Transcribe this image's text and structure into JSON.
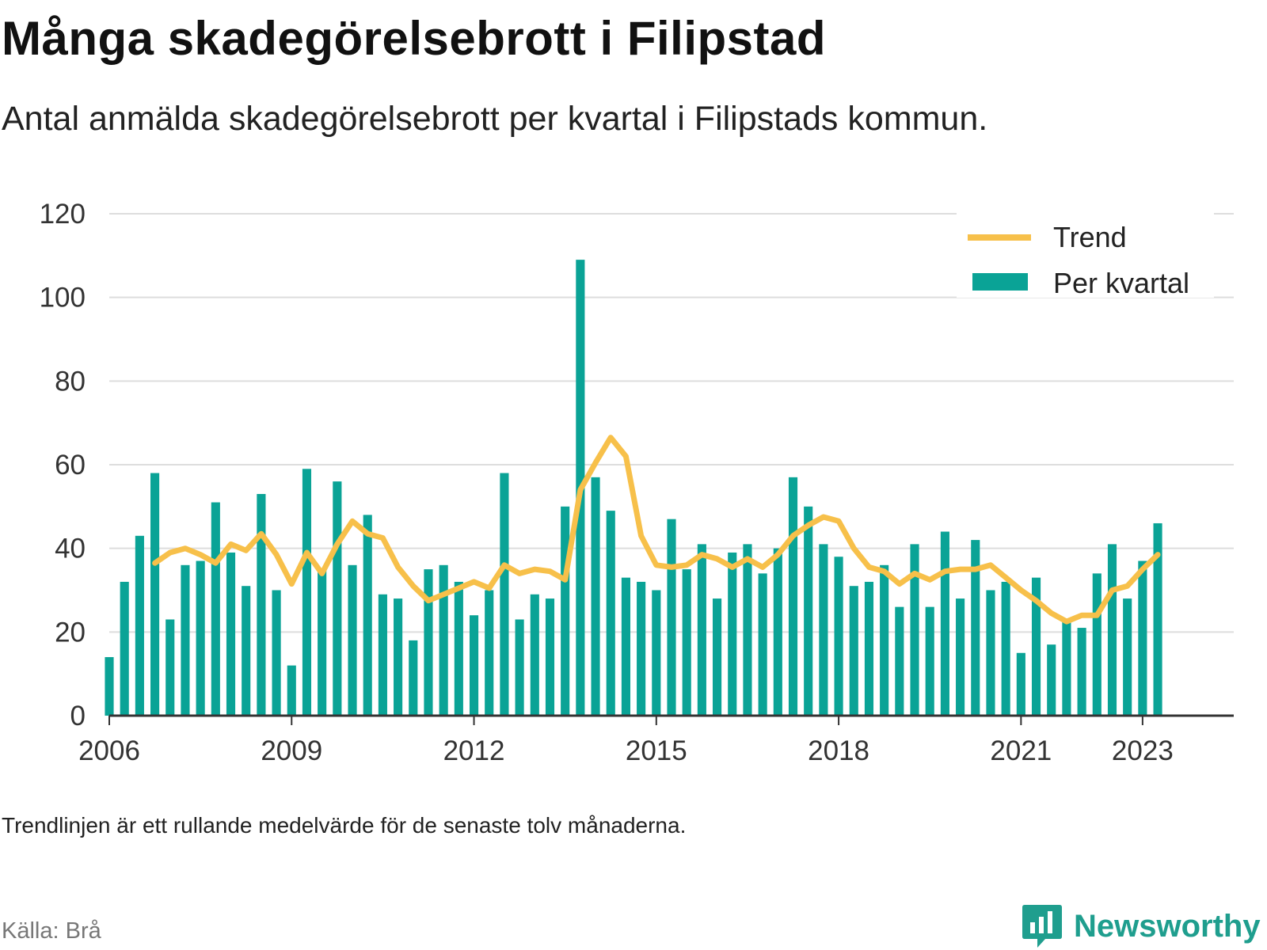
{
  "title": "Många skadegörelsebrott i Filipstad",
  "subtitle": "Antal anmälda skadegörelsebrott per kvartal i Filipstads kommun.",
  "note": "Trendlinjen är ett rullande medelvärde för de senaste tolv månaderna.",
  "source": "Källa: Brå",
  "brand": {
    "name": "Newsworthy",
    "logo_icon": "newsworthy-chart-bubble-icon"
  },
  "colors": {
    "bars": "#0aa396",
    "trend": "#f7c04a",
    "grid": "#dddddd",
    "axis": "#333333"
  },
  "chart_data": {
    "type": "bar",
    "title": "Många skadegörelsebrott i Filipstad",
    "subtitle": "Antal anmälda skadegörelsebrott per kvartal i Filipstads kommun.",
    "x_start": 2006.0,
    "x_step": 0.25,
    "x_ticks": [
      2006,
      2009,
      2012,
      2015,
      2018,
      2021,
      2023
    ],
    "ylim": [
      0,
      120
    ],
    "y_ticks": [
      0,
      20,
      40,
      60,
      80,
      100,
      120
    ],
    "grid": true,
    "legend_position": "top-right",
    "series": [
      {
        "name": "Per kvartal",
        "type": "bar",
        "values": [
          14,
          32,
          43,
          58,
          23,
          36,
          37,
          51,
          39,
          31,
          53,
          30,
          12,
          59,
          35,
          56,
          36,
          48,
          29,
          28,
          18,
          35,
          36,
          32,
          24,
          30,
          58,
          23,
          29,
          28,
          50,
          109,
          57,
          49,
          33,
          32,
          30,
          47,
          35,
          41,
          28,
          39,
          41,
          34,
          40,
          57,
          50,
          41,
          38,
          31,
          32,
          36,
          26,
          41,
          26,
          44,
          28,
          42,
          30,
          32,
          15,
          33,
          17,
          23,
          21,
          34,
          41,
          28,
          37,
          46
        ]
      },
      {
        "name": "Trend",
        "type": "line",
        "values": [
          null,
          null,
          null,
          36.5,
          39,
          40,
          38.5,
          36.5,
          41,
          39.5,
          43.5,
          38.5,
          31.5,
          39,
          34,
          41,
          46.5,
          43.5,
          42.5,
          35.5,
          31,
          27.5,
          29,
          30.5,
          32,
          30.5,
          36,
          34,
          35,
          34.5,
          32.5,
          54,
          60.5,
          66.5,
          62,
          43,
          36,
          35.5,
          36,
          38.5,
          37.5,
          35.5,
          37.5,
          35.5,
          38.5,
          43,
          45.5,
          47.5,
          46.5,
          40,
          35.5,
          34.5,
          31.5,
          34,
          32.5,
          34.5,
          35,
          35,
          36,
          33,
          30,
          27.5,
          24.5,
          22.5,
          24,
          24,
          30,
          31,
          35,
          38.5
        ]
      }
    ]
  }
}
